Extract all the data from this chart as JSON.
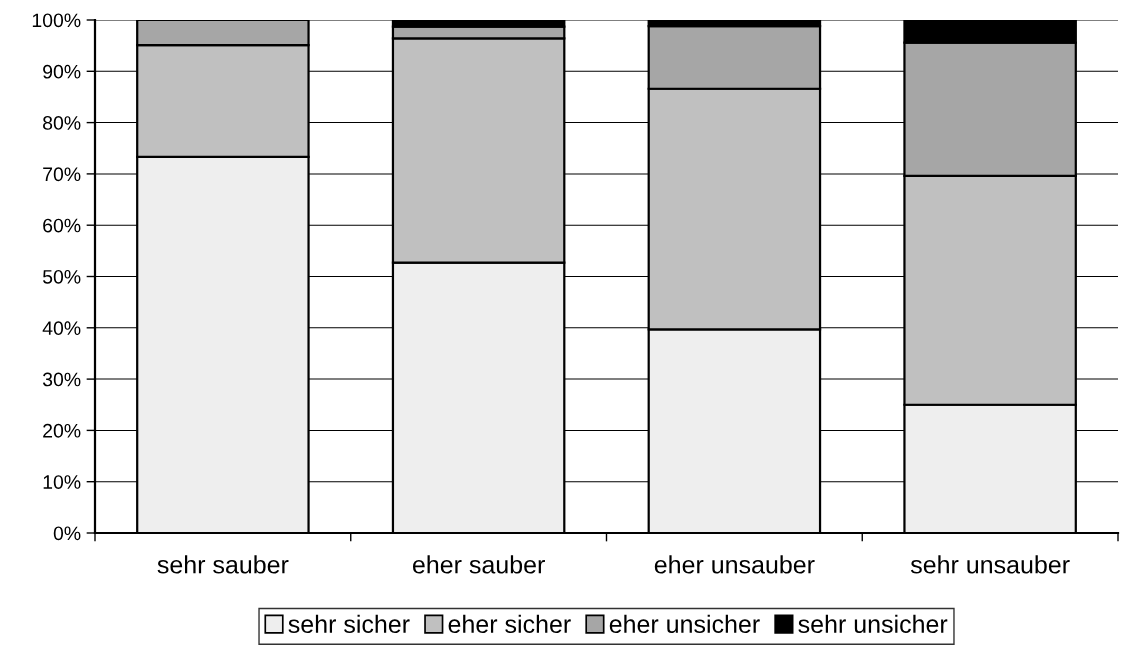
{
  "chart_data": {
    "type": "bar",
    "stacked": true,
    "categories": [
      "sehr sauber",
      "eher sauber",
      "eher unsauber",
      "sehr unsauber"
    ],
    "series": [
      {
        "name": "sehr sicher",
        "color": "#eeeeee",
        "values": [
          73.3,
          52.7,
          39.7,
          25.0
        ]
      },
      {
        "name": "eher sicher",
        "color": "#c0c0c0",
        "values": [
          21.8,
          43.7,
          46.9,
          44.6
        ]
      },
      {
        "name": "eher unsicher",
        "color": "#a6a6a6",
        "values": [
          4.9,
          2.3,
          12.2,
          26.0
        ]
      },
      {
        "name": "sehr unsicher",
        "color": "#000000",
        "values": [
          null,
          1.3,
          1.2,
          4.4
        ]
      }
    ],
    "ylim": [
      0,
      100
    ],
    "yticks": [
      {
        "value": 0,
        "label": "0%"
      },
      {
        "value": 10,
        "label": "10%"
      },
      {
        "value": 20,
        "label": "20%"
      },
      {
        "value": 30,
        "label": "30%"
      },
      {
        "value": 40,
        "label": "40%"
      },
      {
        "value": 50,
        "label": "50%"
      },
      {
        "value": 60,
        "label": "60%"
      },
      {
        "value": 70,
        "label": "70%"
      },
      {
        "value": 80,
        "label": "80%"
      },
      {
        "value": 90,
        "label": "90%"
      },
      {
        "value": 100,
        "label": "100%"
      }
    ],
    "grid": "y",
    "legend": "bottom"
  }
}
